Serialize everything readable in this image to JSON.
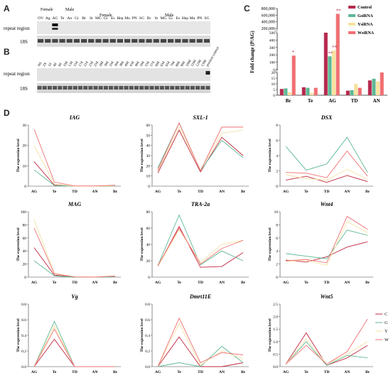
{
  "panels": {
    "A": {
      "letter": "A",
      "sex_labels": [
        "Female",
        "Male",
        "Female",
        "Male"
      ],
      "lanes": [
        "OV",
        "Ag",
        "AG",
        "Te",
        "An",
        "Gi",
        "Br",
        "St",
        "MG",
        "Gi",
        "Es",
        "Hep",
        "Mu",
        "PN",
        "SG",
        "Br",
        "St",
        "MG",
        "Gi",
        "Es",
        "Hep",
        "Mu",
        "PN",
        "SG"
      ],
      "row_labels": [
        "repeat region",
        "18S"
      ]
    },
    "B": {
      "letter": "B",
      "lanes": [
        "NS",
        "ZS",
        "1d",
        "4d",
        "6d",
        "10d",
        "13d",
        "15d",
        "17d",
        "21d",
        "23d",
        "25d",
        "28d",
        "30d",
        "33d",
        "36d",
        "38d",
        "40d",
        "43d",
        "46d",
        "50d",
        "53d",
        "57d",
        "60d",
        "63d",
        "65d",
        "70d",
        "80d",
        "90d",
        "100d",
        "110d",
        "120d",
        "130d",
        "positive control"
      ],
      "row_labels": [
        "repeat region",
        "18S"
      ]
    },
    "C": {
      "letter": "C",
      "ylabel": "Fold change (P/AG)",
      "legend": [
        "Control",
        "GsiRNA",
        "YsiRNA",
        "WsiRNA"
      ],
      "colors": [
        "#b5294e",
        "#5fb894",
        "#f7e3a0",
        "#ef6f72"
      ],
      "categories": [
        "Br",
        "Te",
        "AG",
        "TD",
        "AN"
      ],
      "yticks_top": [
        "0",
        "200,000",
        "400,000",
        "600,000",
        "800,000"
      ],
      "yticks_mid": [
        "0",
        "50",
        "100",
        "150",
        "200",
        "250",
        "300",
        "350",
        "400",
        "450",
        "500"
      ],
      "yticks_bot": [
        "0",
        "5",
        "10",
        "15",
        "20"
      ],
      "sig_marks": [
        "*",
        "**",
        "**",
        "**"
      ]
    },
    "D": {
      "letter": "D",
      "ylabel": "The expression level",
      "legend": [
        "C",
        "G",
        "Y",
        "W"
      ],
      "colors": [
        "#c0283f",
        "#5fb894",
        "#f4e3a6",
        "#ef6f72"
      ]
    }
  },
  "chart_data": [
    {
      "type": "bar",
      "panel": "C",
      "categories": [
        "Br",
        "Te",
        "AG",
        "TD",
        "AN"
      ],
      "series": [
        {
          "name": "Control",
          "values": [
            5.5,
            7.0,
            500,
            4.0,
            13.0
          ]
        },
        {
          "name": "GsiRNA",
          "values": [
            6.0,
            6.5,
            180,
            4.5,
            14.5
          ]
        },
        {
          "name": "YsiRNA",
          "values": [
            2.5,
            2.0,
            260,
            10.0,
            12.0
          ]
        },
        {
          "name": "WsiRNA",
          "values": [
            190,
            6.5,
            640000,
            6.5,
            20.0
          ]
        }
      ],
      "ylabel": "Fold change (P/AG)"
    },
    {
      "type": "line",
      "panel": "D",
      "title": "IAG",
      "x": [
        "AG",
        "Te",
        "TD",
        "AN",
        "Br"
      ],
      "ylim": [
        0,
        30
      ],
      "yticks": [
        0,
        10,
        20,
        30
      ],
      "series": [
        {
          "name": "C",
          "values": [
            12,
            0.5,
            0,
            0,
            0.2
          ]
        },
        {
          "name": "G",
          "values": [
            8,
            0.3,
            0,
            0,
            0.1
          ]
        },
        {
          "name": "Y",
          "values": [
            20,
            1,
            0,
            0,
            0.3
          ]
        },
        {
          "name": "W",
          "values": [
            28,
            2,
            0.1,
            0.1,
            0.5
          ]
        }
      ]
    },
    {
      "type": "line",
      "panel": "D",
      "title": "SXL-1",
      "x": [
        "AG",
        "Te",
        "TD",
        "AN",
        "Br"
      ],
      "ylim": [
        0,
        60
      ],
      "yticks": [
        0,
        10,
        20,
        30,
        40,
        50,
        60
      ],
      "series": [
        {
          "name": "C",
          "values": [
            13,
            55,
            14,
            48,
            30
          ]
        },
        {
          "name": "G",
          "values": [
            18,
            62,
            15,
            45,
            28
          ]
        },
        {
          "name": "Y",
          "values": [
            15,
            58,
            16,
            52,
            55
          ]
        },
        {
          "name": "W",
          "values": [
            16,
            62,
            15,
            58,
            58
          ]
        }
      ]
    },
    {
      "type": "line",
      "panel": "D",
      "title": "DSX",
      "x": [
        "AG",
        "Te",
        "TD",
        "AN",
        "Br"
      ],
      "ylim": [
        0,
        8
      ],
      "yticks": [
        0,
        2,
        4,
        6,
        8
      ],
      "series": [
        {
          "name": "C",
          "values": [
            0.8,
            1.3,
            0.5,
            1.4,
            0.6
          ]
        },
        {
          "name": "G",
          "values": [
            5.2,
            2.1,
            2.9,
            6.4,
            1.8
          ]
        },
        {
          "name": "Y",
          "values": [
            1.5,
            1.0,
            0.8,
            2.2,
            0.9
          ]
        },
        {
          "name": "W",
          "values": [
            1.8,
            1.7,
            1.1,
            4.6,
            1.3
          ]
        }
      ]
    },
    {
      "type": "line",
      "panel": "D",
      "title": "MAG",
      "x": [
        "AG",
        "Te",
        "TD",
        "AN",
        "Br"
      ],
      "ylim": [
        0,
        100
      ],
      "yticks": [
        0,
        20,
        40,
        60,
        80,
        100
      ],
      "series": [
        {
          "name": "C",
          "values": [
            45,
            3,
            0,
            0,
            1
          ]
        },
        {
          "name": "G",
          "values": [
            25,
            2,
            0,
            0,
            0.5
          ]
        },
        {
          "name": "Y",
          "values": [
            88,
            6,
            0.5,
            0.2,
            2
          ]
        },
        {
          "name": "W",
          "values": [
            75,
            5,
            0.3,
            0.1,
            1.5
          ]
        }
      ]
    },
    {
      "type": "line",
      "panel": "D",
      "title": "TRA-2a",
      "x": [
        "AG",
        "Te",
        "TD",
        "AN",
        "Br"
      ],
      "ylim": [
        0,
        80
      ],
      "yticks": [
        0,
        20,
        40,
        60,
        80
      ],
      "series": [
        {
          "name": "C",
          "values": [
            13,
            62,
            12,
            13,
            30
          ]
        },
        {
          "name": "G",
          "values": [
            14,
            76,
            15,
            32,
            20
          ]
        },
        {
          "name": "Y",
          "values": [
            13,
            58,
            18,
            40,
            45
          ]
        },
        {
          "name": "W",
          "values": [
            14,
            60,
            16,
            35,
            45
          ]
        }
      ]
    },
    {
      "type": "line",
      "panel": "D",
      "title": "Wnt4",
      "x": [
        "AG",
        "Te",
        "TD",
        "AN",
        "Br"
      ],
      "ylim": [
        0,
        10
      ],
      "yticks": [
        0,
        2,
        4,
        6,
        8,
        10
      ],
      "series": [
        {
          "name": "C",
          "values": [
            2.6,
            2.3,
            3.1,
            4.6,
            5.4
          ]
        },
        {
          "name": "G",
          "values": [
            3.6,
            3.2,
            2.8,
            7.2,
            6.4
          ]
        },
        {
          "name": "Y",
          "values": [
            2.4,
            2.6,
            1.8,
            8.5,
            6.8
          ]
        },
        {
          "name": "W",
          "values": [
            2.5,
            2.7,
            2.2,
            9.3,
            7.3
          ]
        }
      ]
    },
    {
      "type": "line",
      "panel": "D",
      "title": "Vg",
      "x": [
        "AG",
        "Te",
        "TD",
        "AN",
        "Br"
      ],
      "ylim": [
        0,
        0.8
      ],
      "yticks": [
        0.0,
        0.2,
        0.4,
        0.6,
        0.8
      ],
      "series": [
        {
          "name": "C",
          "values": [
            0,
            0.35,
            0,
            0,
            0
          ]
        },
        {
          "name": "G",
          "values": [
            0,
            0.58,
            0,
            0,
            0
          ]
        },
        {
          "name": "Y",
          "values": [
            0,
            0.52,
            0,
            0,
            0
          ]
        },
        {
          "name": "W",
          "values": [
            0,
            0.48,
            0,
            0,
            0
          ]
        }
      ]
    },
    {
      "type": "line",
      "panel": "D",
      "title": "Dmrt11E",
      "x": [
        "AG",
        "Te",
        "TD",
        "AN",
        "Br"
      ],
      "ylim": [
        0,
        0.8
      ],
      "yticks": [
        0.0,
        0.2,
        0.4,
        0.6,
        0.8
      ],
      "series": [
        {
          "name": "C",
          "values": [
            0,
            0.38,
            0,
            0,
            0.05
          ]
        },
        {
          "name": "G",
          "values": [
            0,
            0.05,
            0,
            0.26,
            0.05
          ]
        },
        {
          "name": "Y",
          "values": [
            0,
            0.55,
            0.02,
            0.2,
            0.1
          ]
        },
        {
          "name": "W",
          "values": [
            0,
            0.62,
            0.05,
            0.18,
            0.15
          ]
        }
      ]
    },
    {
      "type": "line",
      "panel": "D",
      "title": "Wnt5",
      "x": [
        "AG",
        "Te",
        "TD",
        "AN",
        "Br"
      ],
      "ylim": [
        0,
        2.5
      ],
      "yticks": [
        0.0,
        0.5,
        1.0,
        1.5,
        2.0,
        2.5
      ],
      "series": [
        {
          "name": "C",
          "values": [
            0.1,
            1.35,
            0.05,
            0.35,
            0.85
          ]
        },
        {
          "name": "G",
          "values": [
            0.1,
            1.0,
            0.05,
            0.45,
            0.35
          ]
        },
        {
          "name": "Y",
          "values": [
            0.1,
            1.1,
            0.1,
            0.5,
            1.0
          ]
        },
        {
          "name": "W",
          "values": [
            0.1,
            0.85,
            0.1,
            0.6,
            1.9
          ]
        }
      ]
    }
  ]
}
